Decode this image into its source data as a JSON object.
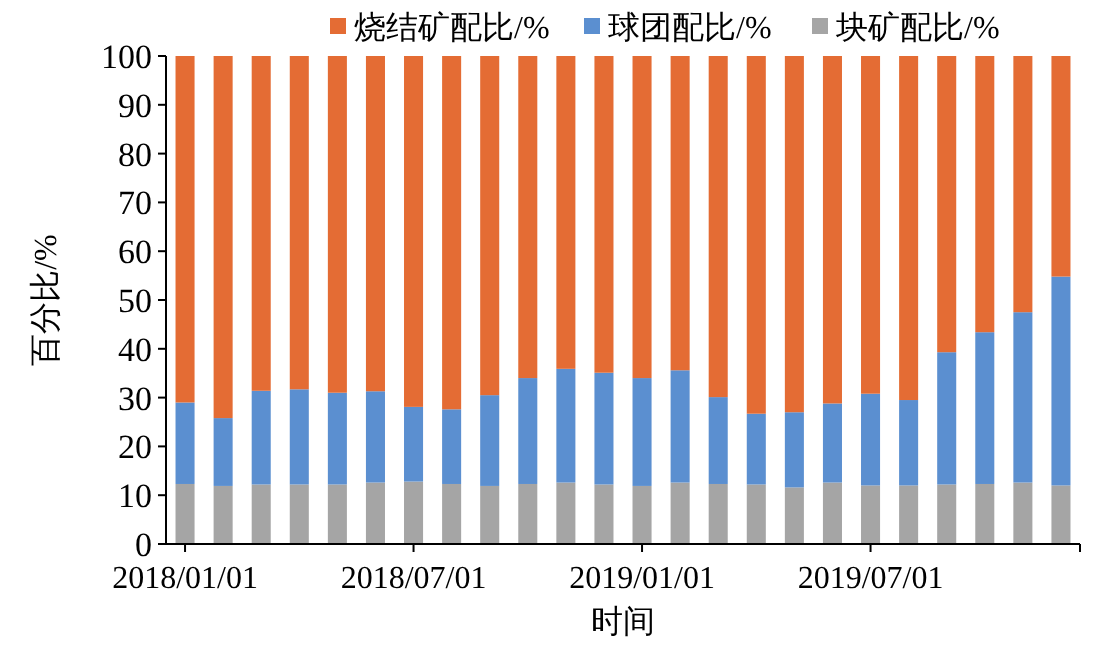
{
  "chart_data": {
    "type": "bar",
    "stacked": true,
    "xlabel": "时间",
    "ylabel": "百分比/%",
    "categories": [
      "2018/01/01",
      null,
      null,
      null,
      null,
      null,
      "2018/07/01",
      null,
      null,
      null,
      null,
      null,
      "2019/01/01",
      null,
      null,
      null,
      null,
      null,
      "2019/07/01",
      null,
      null,
      null,
      null,
      null
    ],
    "series": [
      {
        "name": "块矿配比/%",
        "color": "#a5a5a5",
        "values": [
          12.3,
          11.9,
          12.2,
          12.2,
          12.2,
          12.6,
          12.8,
          12.3,
          11.9,
          12.3,
          12.6,
          12.2,
          11.9,
          12.6,
          12.3,
          12.2,
          11.6,
          12.6,
          12.0,
          12.0,
          12.2,
          12.3,
          12.6,
          12.0
        ]
      },
      {
        "name": "球团配比/%",
        "color": "#5b8fd0",
        "values": [
          16.7,
          13.9,
          19.2,
          19.5,
          18.8,
          18.7,
          15.3,
          15.3,
          18.6,
          21.7,
          23.3,
          22.9,
          22.1,
          23.0,
          17.8,
          14.5,
          15.4,
          16.2,
          18.8,
          17.5,
          27.1,
          31.1,
          34.9,
          42.8
        ]
      },
      {
        "name": "烧结矿配比/%",
        "color": "#e46c34",
        "values": [
          71,
          74.2,
          68.6,
          68.3,
          69,
          68.7,
          71.9,
          72.4,
          69.5,
          66,
          64.1,
          64.9,
          66,
          64.4,
          69.9,
          73.3,
          73,
          71.2,
          69.2,
          70.5,
          60.7,
          56.6,
          52.5,
          45.2
        ]
      }
    ],
    "ylim": [
      0,
      100
    ],
    "yticks": [
      0,
      10,
      20,
      30,
      40,
      50,
      60,
      70,
      80,
      90,
      100
    ],
    "legend": "top"
  }
}
